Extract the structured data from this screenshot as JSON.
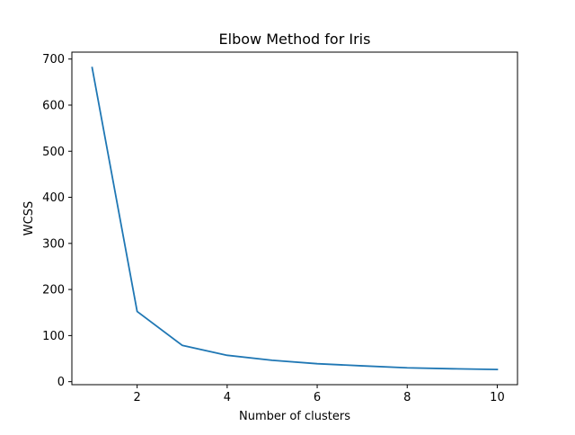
{
  "chart_data": {
    "type": "line",
    "title": "Elbow Method for Iris",
    "xlabel": "Number of clusters",
    "ylabel": "WCSS",
    "x": [
      1,
      2,
      3,
      4,
      5,
      6,
      7,
      8,
      9,
      10
    ],
    "series": [
      {
        "values": [
          681.4,
          152.3,
          78.9,
          57.2,
          46.4,
          39.0,
          34.3,
          30.0,
          28.0,
          26.5
        ],
        "color": "#1f77b4"
      }
    ],
    "xlim": [
      0.55,
      10.45
    ],
    "ylim": [
      -6.5,
      715
    ],
    "xticks": [
      2,
      4,
      6,
      8,
      10
    ],
    "yticks": [
      0,
      100,
      200,
      300,
      400,
      500,
      600,
      700
    ],
    "grid": false,
    "legend": "none"
  }
}
